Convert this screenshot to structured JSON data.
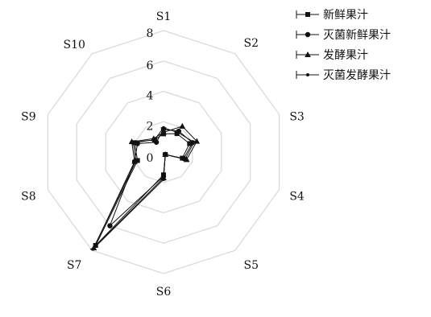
{
  "chart_data": {
    "type": "radar",
    "title": "",
    "categories": [
      "S1",
      "S2",
      "S3",
      "S4",
      "S5",
      "S6",
      "S7",
      "S8",
      "S9",
      "S10"
    ],
    "rlim": [
      0,
      8
    ],
    "ticks": [
      "0",
      "2",
      "4",
      "6",
      "8"
    ],
    "grid": true,
    "legend_position": "top-right",
    "series": [
      {
        "name": "新鲜果汁",
        "marker": "square",
        "values": [
          1.2,
          1.5,
          1.8,
          1.3,
          0.2,
          1.5,
          7.6,
          1.8,
          2.0,
          1.0
        ]
      },
      {
        "name": "灭菌新鲜果汁",
        "marker": "circle",
        "values": [
          1.5,
          1.7,
          2.0,
          1.4,
          0.2,
          1.6,
          6.0,
          2.0,
          1.8,
          0.8
        ]
      },
      {
        "name": "发酵果汁",
        "marker": "triangle",
        "values": [
          1.3,
          2.1,
          2.3,
          1.6,
          0.2,
          1.7,
          7.8,
          2.0,
          2.2,
          1.1
        ]
      },
      {
        "name": "灭菌发酵果汁",
        "marker": "star",
        "values": [
          1.6,
          1.6,
          2.1,
          1.5,
          0.2,
          1.8,
          7.9,
          1.9,
          2.1,
          1.0
        ]
      }
    ]
  }
}
